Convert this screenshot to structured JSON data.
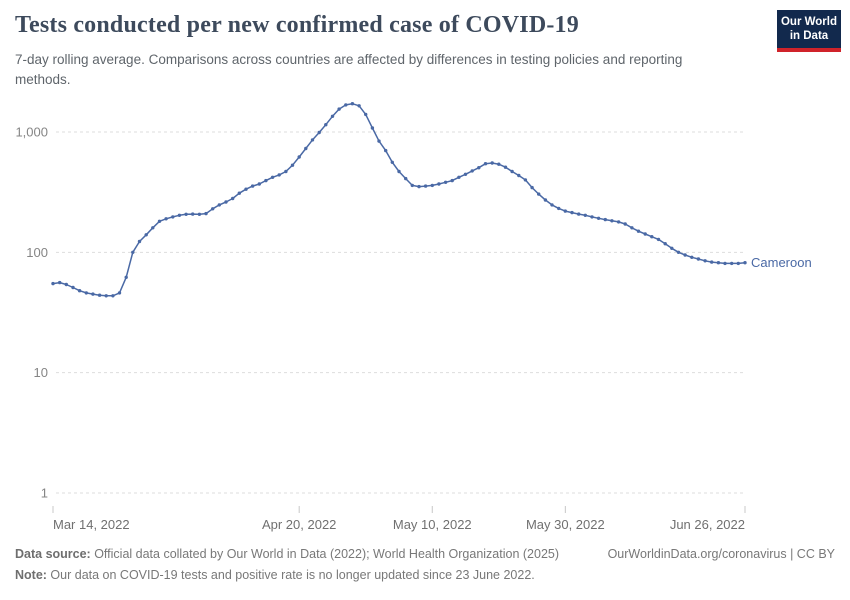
{
  "header": {
    "title": "Tests conducted per new confirmed case of COVID-19",
    "subtitle": "7-day rolling average. Comparisons across countries are affected by differences in testing policies and reporting methods.",
    "logo": {
      "line1": "Our World",
      "line2": "in Data"
    }
  },
  "chart_data": {
    "type": "line",
    "title": "Tests conducted per new confirmed case of COVID-19",
    "xlabel": "",
    "ylabel": "",
    "y_scale": "log",
    "ylim": [
      1,
      2000
    ],
    "grid": "dashed-horizontal",
    "legend_position": "end-of-line-label",
    "yticks": [
      {
        "value": 1,
        "label": "1"
      },
      {
        "value": 10,
        "label": "10"
      },
      {
        "value": 100,
        "label": "100"
      },
      {
        "value": 1000,
        "label": "1,000"
      }
    ],
    "xticks": [
      {
        "label": "Mar 14, 2022",
        "day": 0
      },
      {
        "label": "Apr 20, 2022",
        "day": 37
      },
      {
        "label": "May 10, 2022",
        "day": 57
      },
      {
        "label": "May 30, 2022",
        "day": 77
      },
      {
        "label": "Jun 26, 2022",
        "day": 104
      }
    ],
    "series": [
      {
        "name": "Cameroon",
        "cadence": "daily",
        "start_date": "Mar 14, 2022",
        "end_date": "Jun 26, 2022",
        "values": [
          55,
          56,
          54,
          51,
          48,
          46,
          45,
          44,
          43.5,
          43.5,
          46,
          62,
          100,
          123,
          140,
          160,
          181,
          190,
          197,
          203,
          207,
          208,
          207,
          210,
          230,
          248,
          262,
          280,
          310,
          335,
          355,
          370,
          395,
          420,
          440,
          470,
          530,
          620,
          730,
          860,
          990,
          1150,
          1350,
          1550,
          1680,
          1720,
          1650,
          1400,
          1080,
          840,
          700,
          560,
          470,
          410,
          360,
          352,
          355,
          360,
          370,
          382,
          395,
          420,
          445,
          475,
          505,
          545,
          553,
          540,
          510,
          470,
          435,
          400,
          345,
          305,
          272,
          248,
          232,
          220,
          214,
          208,
          203,
          197,
          192,
          187,
          183,
          179,
          172,
          160,
          150,
          142,
          135,
          128,
          118,
          108,
          100,
          95,
          91,
          88,
          85,
          83,
          82,
          81,
          81,
          81,
          82
        ]
      }
    ]
  },
  "footer": {
    "source_label": "Data source:",
    "source_text": " Official data collated by Our World in Data (2022); World Health Organization (2025)",
    "link": "OurWorldinData.org/coronavirus",
    "separator": " | ",
    "license": "CC BY",
    "note_label": "Note:",
    "note_text": " Our data on COVID-19 tests and positive rate is no longer updated since 23 June 2022."
  },
  "colors": {
    "line": "#4a69a5",
    "entity_label": "#4a69a5",
    "grid": "#dddddd",
    "axis_text": "#858585",
    "tick_mark": "#c8c8c8",
    "title_text": "#3d4a5c",
    "logo_navy": "#12294d",
    "logo_red": "#d0232a"
  }
}
